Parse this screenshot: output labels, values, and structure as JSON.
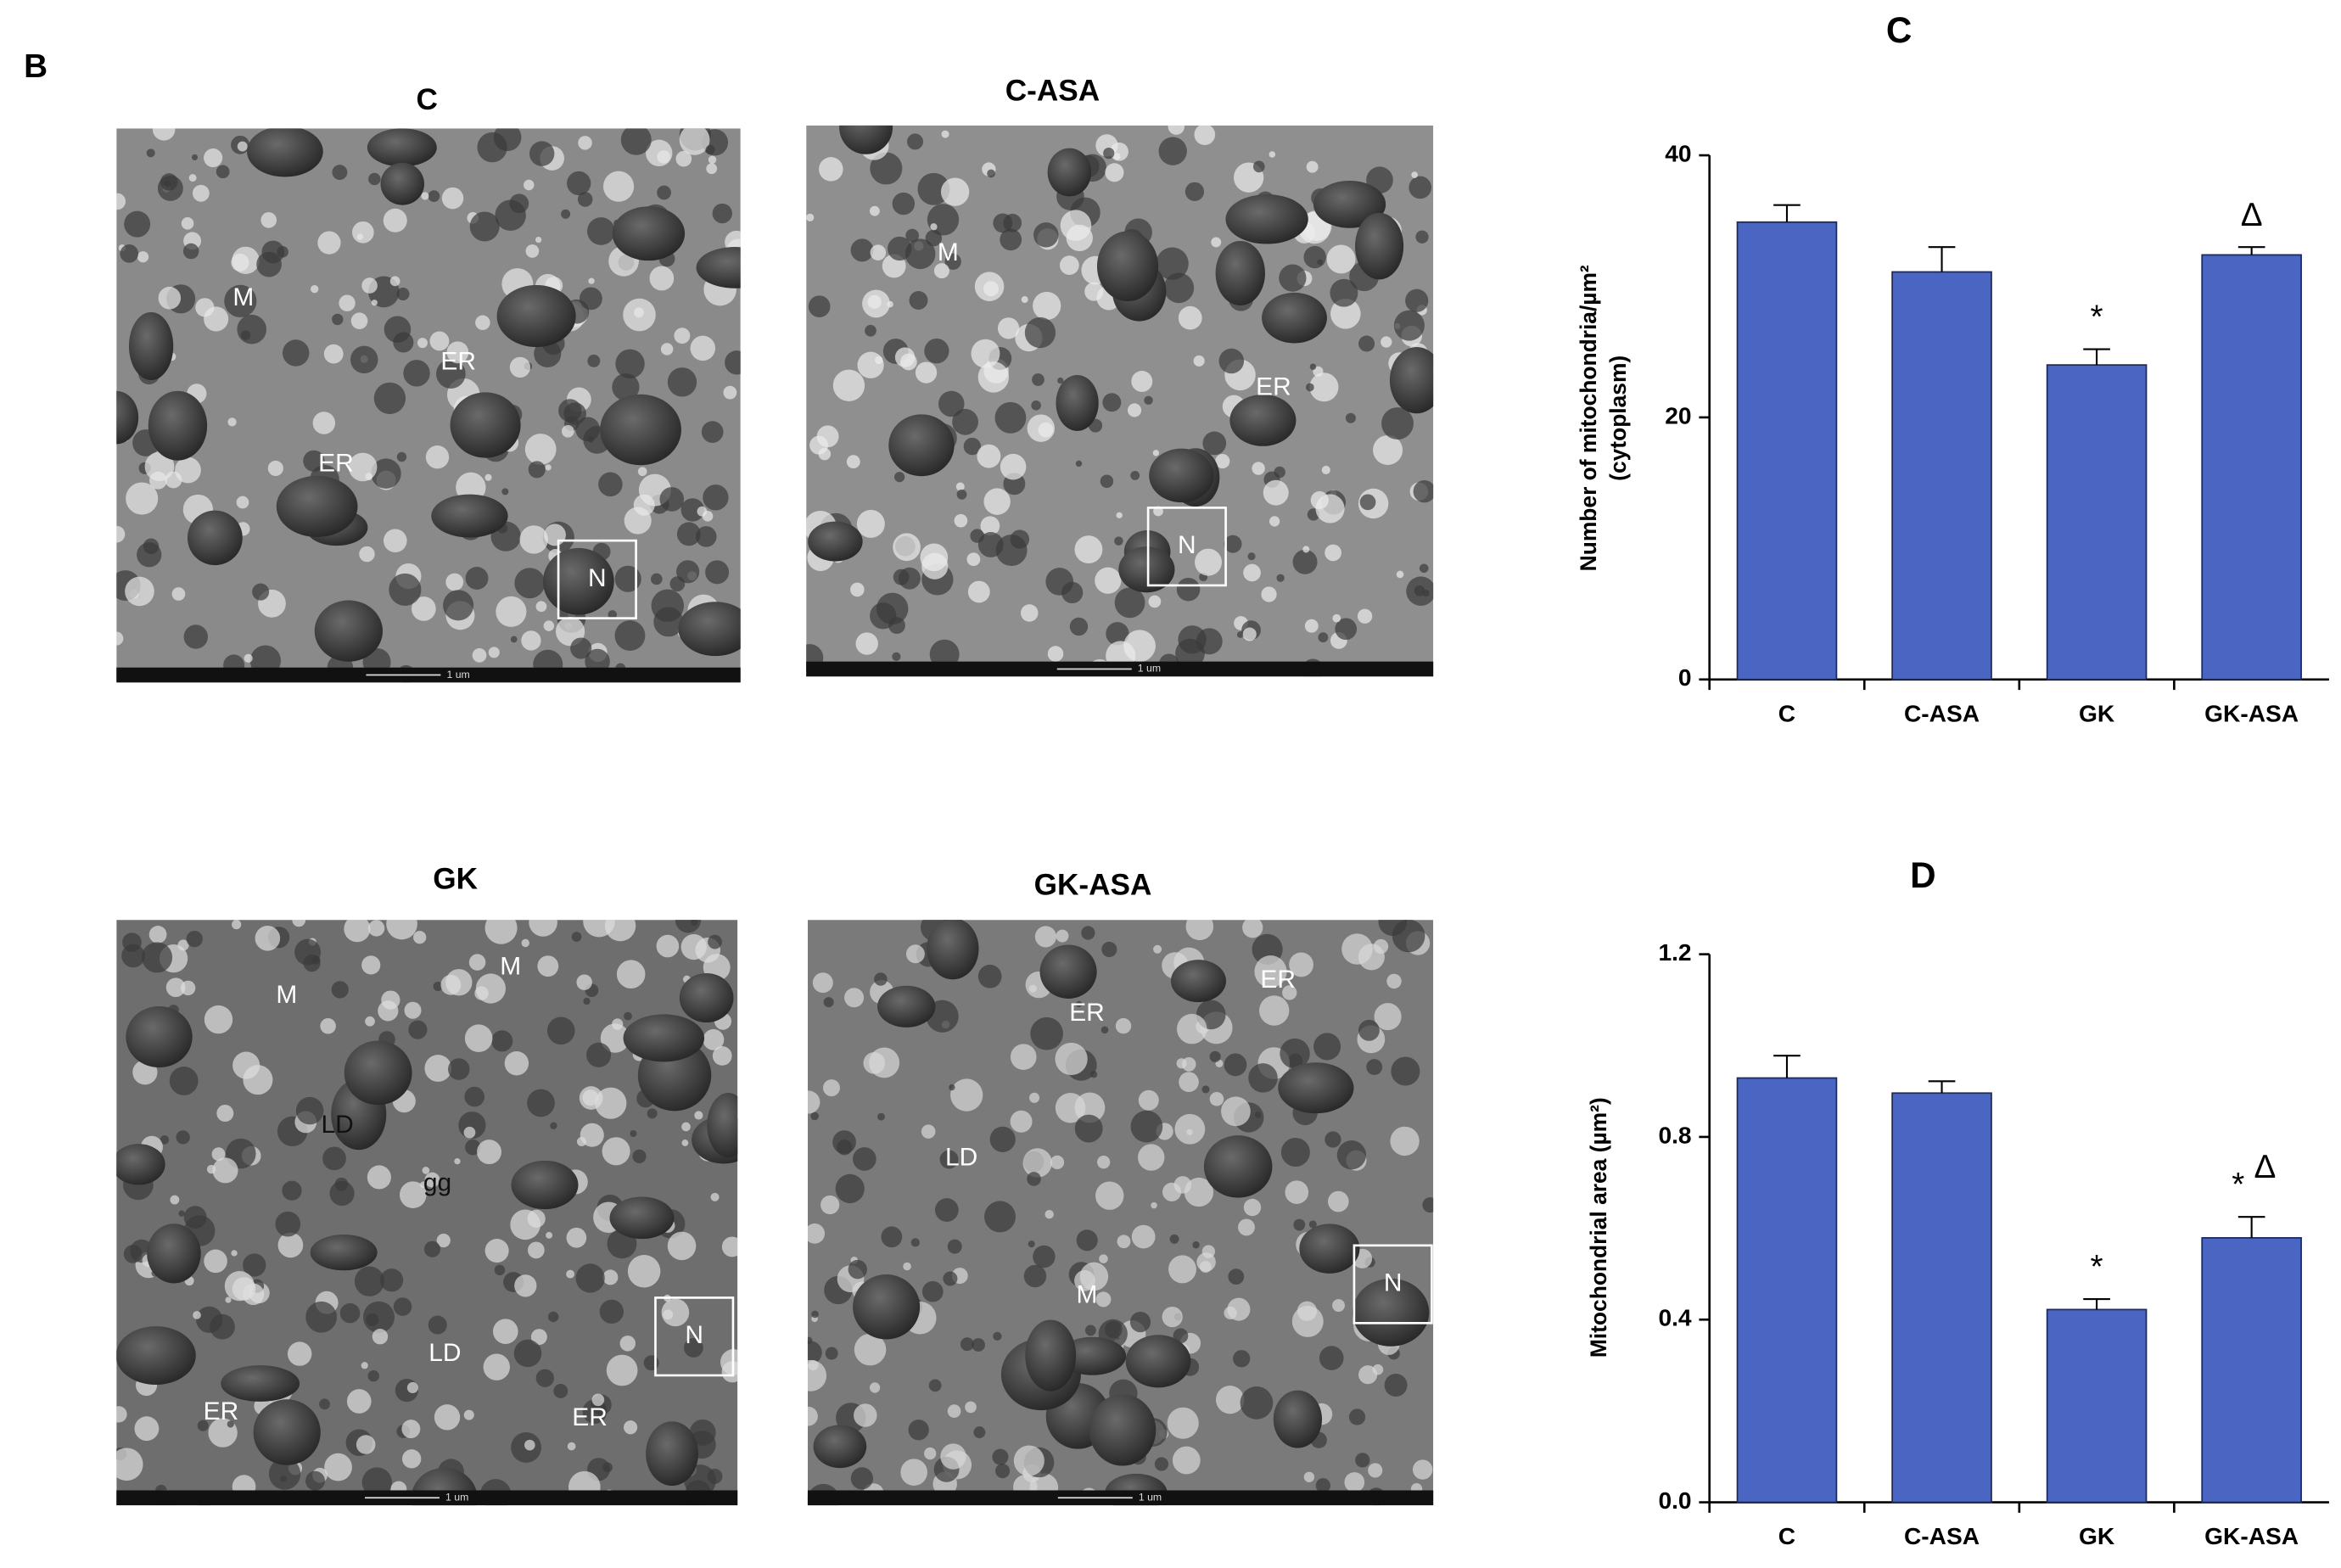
{
  "micrographs": {
    "panel_label": "B",
    "panels": [
      {
        "title": "C",
        "labels": [
          "M",
          "ER",
          "ER",
          "N"
        ],
        "scale_bar": "1 um"
      },
      {
        "title": "C-ASA",
        "labels": [
          "M",
          "ER",
          "N"
        ],
        "scale_bar": "1 um"
      },
      {
        "title": "GK",
        "labels": [
          "M",
          "M",
          "LD",
          "gg",
          "LD",
          "ER",
          "ER",
          "N"
        ],
        "scale_bar": "1 um"
      },
      {
        "title": "GK-ASA",
        "labels": [
          "ER",
          "ER",
          "LD",
          "M",
          "N"
        ],
        "scale_bar": "1 um"
      }
    ]
  },
  "chart_data": [
    {
      "type": "bar",
      "title": "C",
      "ylabel": [
        "Number of mitochondria/µm²",
        "(cytoplasm)"
      ],
      "categories": [
        "C",
        "C-ASA",
        "GK",
        "GK-ASA"
      ],
      "values": [
        34.9,
        31.1,
        24.0,
        32.4
      ],
      "errors": [
        1.3,
        1.9,
        1.2,
        0.6
      ],
      "annotations": [
        null,
        null,
        [
          "*"
        ],
        [
          "Δ"
        ]
      ],
      "color": "#4a66c2",
      "ylim": [
        0,
        40
      ],
      "yticks": [
        0,
        20,
        40
      ]
    },
    {
      "type": "bar",
      "title": "D",
      "ylabel": [
        "Mitochondrial area (µm²)"
      ],
      "categories": [
        "C",
        "C-ASA",
        "GK",
        "GK-ASA"
      ],
      "values": [
        0.929,
        0.896,
        0.422,
        0.579
      ],
      "errors": [
        0.049,
        0.026,
        0.023,
        0.046
      ],
      "annotations": [
        null,
        null,
        [
          "*"
        ],
        [
          "*",
          "Δ"
        ]
      ],
      "color": "#4a66c2",
      "ylim": [
        0,
        1.2
      ],
      "yticks": [
        {
          "value": 0,
          "label": "0.0"
        },
        0.4,
        0.8,
        1.2
      ]
    }
  ]
}
